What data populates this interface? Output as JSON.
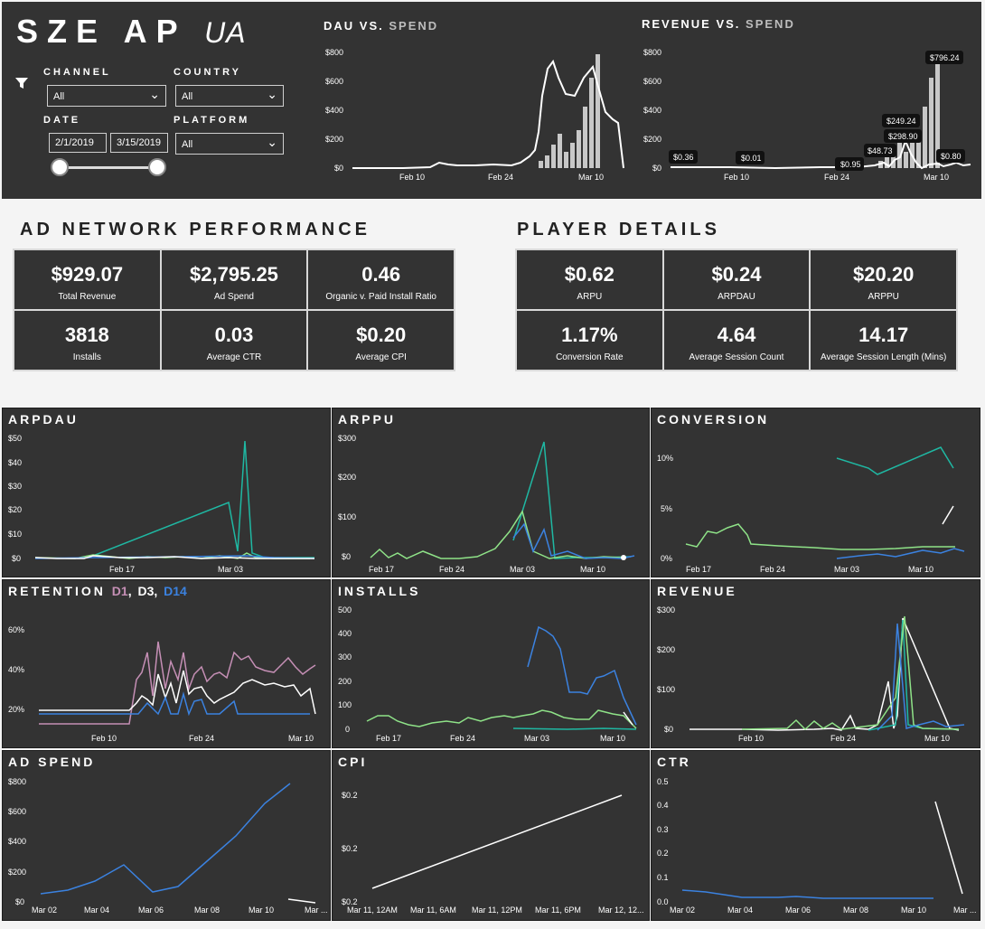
{
  "header": {
    "title_main": "SZE AP",
    "title_sub": "UA",
    "filters": {
      "channel": {
        "label": "CHANNEL",
        "value": "All"
      },
      "country": {
        "label": "COUNTRY",
        "value": "All"
      },
      "date": {
        "label": "DATE",
        "start": "2/1/2019",
        "end": "3/15/2019"
      },
      "platform": {
        "label": "PLATFORM",
        "value": "All"
      }
    }
  },
  "dau_chart": {
    "title_a": "DAU VS.",
    "title_b": "SPEND",
    "yticks": [
      "$800",
      "$600",
      "$400",
      "$200",
      "$0"
    ],
    "xticks": [
      "Feb 10",
      "Feb 24",
      "Mar 10"
    ]
  },
  "rev_chart": {
    "title_a": "REVENUE VS.",
    "title_b": "SPEND",
    "yticks": [
      "$800",
      "$600",
      "$400",
      "$200",
      "$0"
    ],
    "xticks": [
      "Feb 10",
      "Feb 24",
      "Mar 10"
    ],
    "labels": [
      "$0.36",
      "$0.01",
      "$0.95",
      "$48.73",
      "$249.24",
      "$298.90",
      "$796.24",
      "$0.80"
    ]
  },
  "ad_network": {
    "title": "AD NETWORK PERFORMANCE",
    "kpis": [
      {
        "value": "$929.07",
        "label": "Total Revenue"
      },
      {
        "value": "$2,795.25",
        "label": "Ad Spend"
      },
      {
        "value": "0.46",
        "label": "Organic v. Paid Install Ratio"
      },
      {
        "value": "3818",
        "label": "Installs"
      },
      {
        "value": "0.03",
        "label": "Average CTR"
      },
      {
        "value": "$0.20",
        "label": "Average CPI"
      }
    ]
  },
  "player": {
    "title": "PLAYER DETAILS",
    "kpis": [
      {
        "value": "$0.62",
        "label": "ARPU"
      },
      {
        "value": "$0.24",
        "label": "ARPDAU"
      },
      {
        "value": "$20.20",
        "label": "ARPPU"
      },
      {
        "value": "1.17%",
        "label": "Conversion Rate"
      },
      {
        "value": "4.64",
        "label": "Average Session Count"
      },
      {
        "value": "14.17",
        "label": "Average Session Length (Mins)"
      }
    ]
  },
  "panels": {
    "arpdau": {
      "title": "ARPDAU",
      "yticks": [
        "$50",
        "$40",
        "$30",
        "$20",
        "$10",
        "$0"
      ],
      "xticks": [
        "Feb 17",
        "Mar 03"
      ]
    },
    "arppu": {
      "title": "ARPPU",
      "yticks": [
        "$300",
        "$200",
        "$100",
        "$0"
      ],
      "xticks": [
        "Feb 17",
        "Feb 24",
        "Mar 03",
        "Mar 10"
      ]
    },
    "conversion": {
      "title": "CONVERSION",
      "yticks": [
        "10%",
        "5%",
        "0%"
      ],
      "xticks": [
        "Feb 17",
        "Feb 24",
        "Mar 03",
        "Mar 10"
      ]
    },
    "retention": {
      "title": "RETENTION",
      "d1": "D1",
      "sep1": ",",
      "d3": "D3",
      "sep2": ",",
      "d14": "D14",
      "yticks": [
        "60%",
        "40%",
        "20%"
      ],
      "xticks": [
        "Feb 10",
        "Feb 24",
        "Mar 10"
      ]
    },
    "installs": {
      "title": "INSTALLS",
      "yticks": [
        "500",
        "400",
        "300",
        "200",
        "100",
        "0"
      ],
      "xticks": [
        "Feb 17",
        "Feb 24",
        "Mar 03",
        "Mar 10"
      ]
    },
    "revenue": {
      "title": "REVENUE",
      "yticks": [
        "$300",
        "$200",
        "$100",
        "$0"
      ],
      "xticks": [
        "Feb 10",
        "Feb 24",
        "Mar 10"
      ]
    },
    "adspend": {
      "title": "AD SPEND",
      "yticks": [
        "$800",
        "$600",
        "$400",
        "$200",
        "$0"
      ],
      "xticks": [
        "Mar 02",
        "Mar 04",
        "Mar 06",
        "Mar 08",
        "Mar 10",
        "Mar ..."
      ]
    },
    "cpi": {
      "title": "CPI",
      "yticks": [
        "$0.2",
        "$0.2",
        "$0.2"
      ],
      "xticks": [
        "Mar 11, 12AM",
        "Mar 11, 6AM",
        "Mar 11, 12PM",
        "Mar 11, 6PM",
        "Mar 12, 12..."
      ]
    },
    "ctr": {
      "title": "CTR",
      "yticks": [
        "0.5",
        "0.4",
        "0.3",
        "0.2",
        "0.1",
        "0.0"
      ],
      "xticks": [
        "Mar 02",
        "Mar 04",
        "Mar 06",
        "Mar 08",
        "Mar 10",
        "Mar ..."
      ]
    }
  },
  "colors": {
    "teal": "#1fb8a3",
    "green": "#8fe388",
    "blue": "#3b82e0",
    "pink": "#c58fb5",
    "white": "#ffffff"
  }
}
